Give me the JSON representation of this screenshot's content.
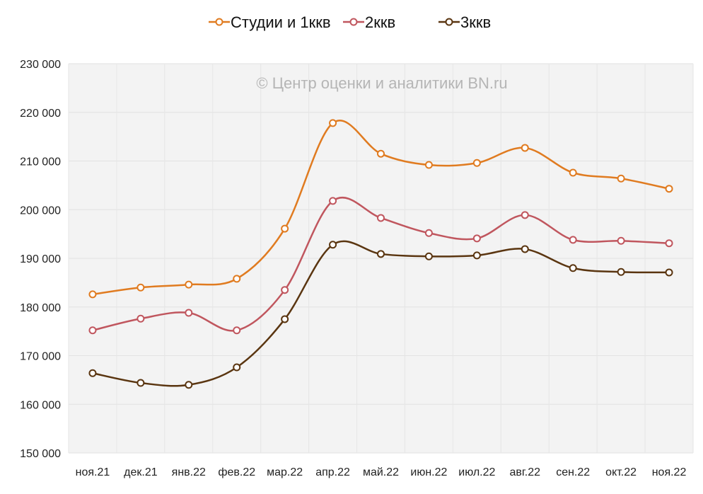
{
  "chart_data": {
    "type": "line",
    "title": "",
    "watermark": "© Центр оценки и аналитики BN.ru",
    "xlabel": "",
    "ylabel": "",
    "categories": [
      "ноя.21",
      "дек.21",
      "янв.22",
      "фев.22",
      "мар.22",
      "апр.22",
      "май.22",
      "июн.22",
      "июл.22",
      "авг.22",
      "сен.22",
      "окт.22",
      "ноя.22"
    ],
    "ylim": [
      150000,
      230000
    ],
    "yticks": [
      150000,
      160000,
      170000,
      180000,
      190000,
      200000,
      210000,
      220000,
      230000
    ],
    "ytick_labels": [
      "150 000",
      "160 000",
      "170 000",
      "180 000",
      "190 000",
      "200 000",
      "210 000",
      "220 000",
      "230 000"
    ],
    "grid": true,
    "legend_position": "top-center",
    "series": [
      {
        "name": "Студии и 1ккв",
        "color": "#e07b20",
        "values": [
          182600,
          184000,
          184600,
          185800,
          196100,
          217800,
          211500,
          209200,
          209600,
          212700,
          207600,
          206400,
          204300
        ]
      },
      {
        "name": "2ккв",
        "color": "#c0565e",
        "values": [
          175200,
          177600,
          178800,
          175200,
          183500,
          201800,
          198300,
          195200,
          194100,
          198900,
          193800,
          193600,
          193100
        ]
      },
      {
        "name": "3ккв",
        "color": "#5a3510",
        "values": [
          166400,
          164400,
          164000,
          167600,
          177500,
          192800,
          190900,
          190400,
          190600,
          191900,
          188000,
          187200,
          187100
        ]
      }
    ]
  }
}
